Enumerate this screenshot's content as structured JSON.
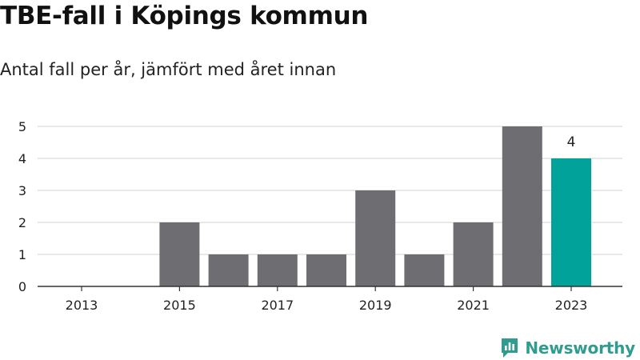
{
  "title": "TBE-fall i Köpings kommun",
  "subtitle": "Antal fall per år, jämfört med året innan",
  "brand": "Newsworthy",
  "colors": {
    "bar": "#6d6d72",
    "highlight": "#00a29a",
    "grid": "#d9d9d9",
    "axis": "#333333",
    "brand": "#2f9c8f"
  },
  "chart_data": {
    "type": "bar",
    "categories": [
      "2013",
      "2014",
      "2015",
      "2016",
      "2017",
      "2018",
      "2019",
      "2020",
      "2021",
      "2022",
      "2023"
    ],
    "values": [
      0,
      0,
      2,
      1,
      1,
      1,
      3,
      1,
      2,
      5,
      4
    ],
    "xtick_labels": [
      "2013",
      "2015",
      "2017",
      "2019",
      "2021",
      "2023"
    ],
    "yticks": [
      0,
      1,
      2,
      3,
      4,
      5
    ],
    "ylim": [
      0,
      5
    ],
    "highlight_category": "2023",
    "data_labels": [
      {
        "category": "2023",
        "text": "4"
      }
    ],
    "grid": true,
    "xlabel": "",
    "ylabel": ""
  }
}
